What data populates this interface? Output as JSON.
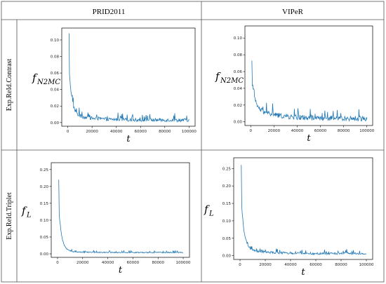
{
  "table": {
    "columns": [
      "PRID2011",
      "VIPeR"
    ],
    "rows": [
      "Exp.ReId.Contrast",
      "Exp.ReId.Triplet"
    ]
  },
  "chart_data": [
    {
      "type": "line",
      "row": 0,
      "col": 0,
      "ylabel_main": "f",
      "ylabel_sub": "N2MC",
      "xlabel": "t",
      "xlim": [
        0,
        100000
      ],
      "ylim": [
        0,
        0.11
      ],
      "xticks": [
        0,
        20000,
        40000,
        60000,
        80000,
        100000
      ],
      "yticks": [
        0.0,
        0.02,
        0.04,
        0.06,
        0.08,
        0.1
      ],
      "ytick_labels": [
        "0.00",
        "0.02",
        "0.04",
        "0.06",
        "0.08",
        "0.10"
      ],
      "color": "#1f77b4",
      "peak": {
        "x": 1000,
        "y": 0.108
      },
      "decay_to": 0.01,
      "floor": 0.003,
      "noise": 0.004
    },
    {
      "type": "line",
      "row": 0,
      "col": 1,
      "ylabel_main": "f",
      "ylabel_sub": "N2MC",
      "xlabel": "t",
      "xlim": [
        0,
        100000
      ],
      "ylim": [
        0,
        0.11
      ],
      "xticks": [
        0,
        20000,
        40000,
        60000,
        80000,
        100000
      ],
      "yticks": [
        0.0,
        0.02,
        0.04,
        0.06,
        0.08,
        0.1
      ],
      "ytick_labels": [
        "0.00",
        "0.02",
        "0.04",
        "0.06",
        "0.08",
        "0.10"
      ],
      "color": "#1f77b4",
      "peak": {
        "x": 1000,
        "y": 0.073
      },
      "decay_to": 0.018,
      "floor": 0.004,
      "noise": 0.006
    },
    {
      "type": "line",
      "row": 1,
      "col": 0,
      "ylabel_main": "f",
      "ylabel_sub": "L",
      "xlabel": "t",
      "xlim": [
        0,
        100000
      ],
      "ylim": [
        0,
        0.26
      ],
      "xticks": [
        0,
        20000,
        40000,
        60000,
        80000,
        100000
      ],
      "yticks": [
        0.0,
        0.05,
        0.1,
        0.15,
        0.2,
        0.25
      ],
      "ytick_labels": [
        "0.00",
        "0.05",
        "0.10",
        "0.15",
        "0.20",
        "0.25"
      ],
      "color": "#1f77b4",
      "peak": {
        "x": 1000,
        "y": 0.22
      },
      "decay_to": 0.008,
      "floor": 0.004,
      "noise": 0.003
    },
    {
      "type": "line",
      "row": 1,
      "col": 1,
      "ylabel_main": "f",
      "ylabel_sub": "L",
      "xlabel": "t",
      "xlim": [
        0,
        100000
      ],
      "ylim": [
        0,
        0.27
      ],
      "xticks": [
        0,
        20000,
        40000,
        60000,
        80000,
        100000
      ],
      "yticks": [
        0.0,
        0.05,
        0.1,
        0.15,
        0.2,
        0.25
      ],
      "ytick_labels": [
        "0.00",
        "0.05",
        "0.10",
        "0.15",
        "0.20",
        "0.25"
      ],
      "color": "#1f77b4",
      "peak": {
        "x": 1000,
        "y": 0.26
      },
      "decay_to": 0.018,
      "floor": 0.006,
      "noise": 0.006
    }
  ]
}
